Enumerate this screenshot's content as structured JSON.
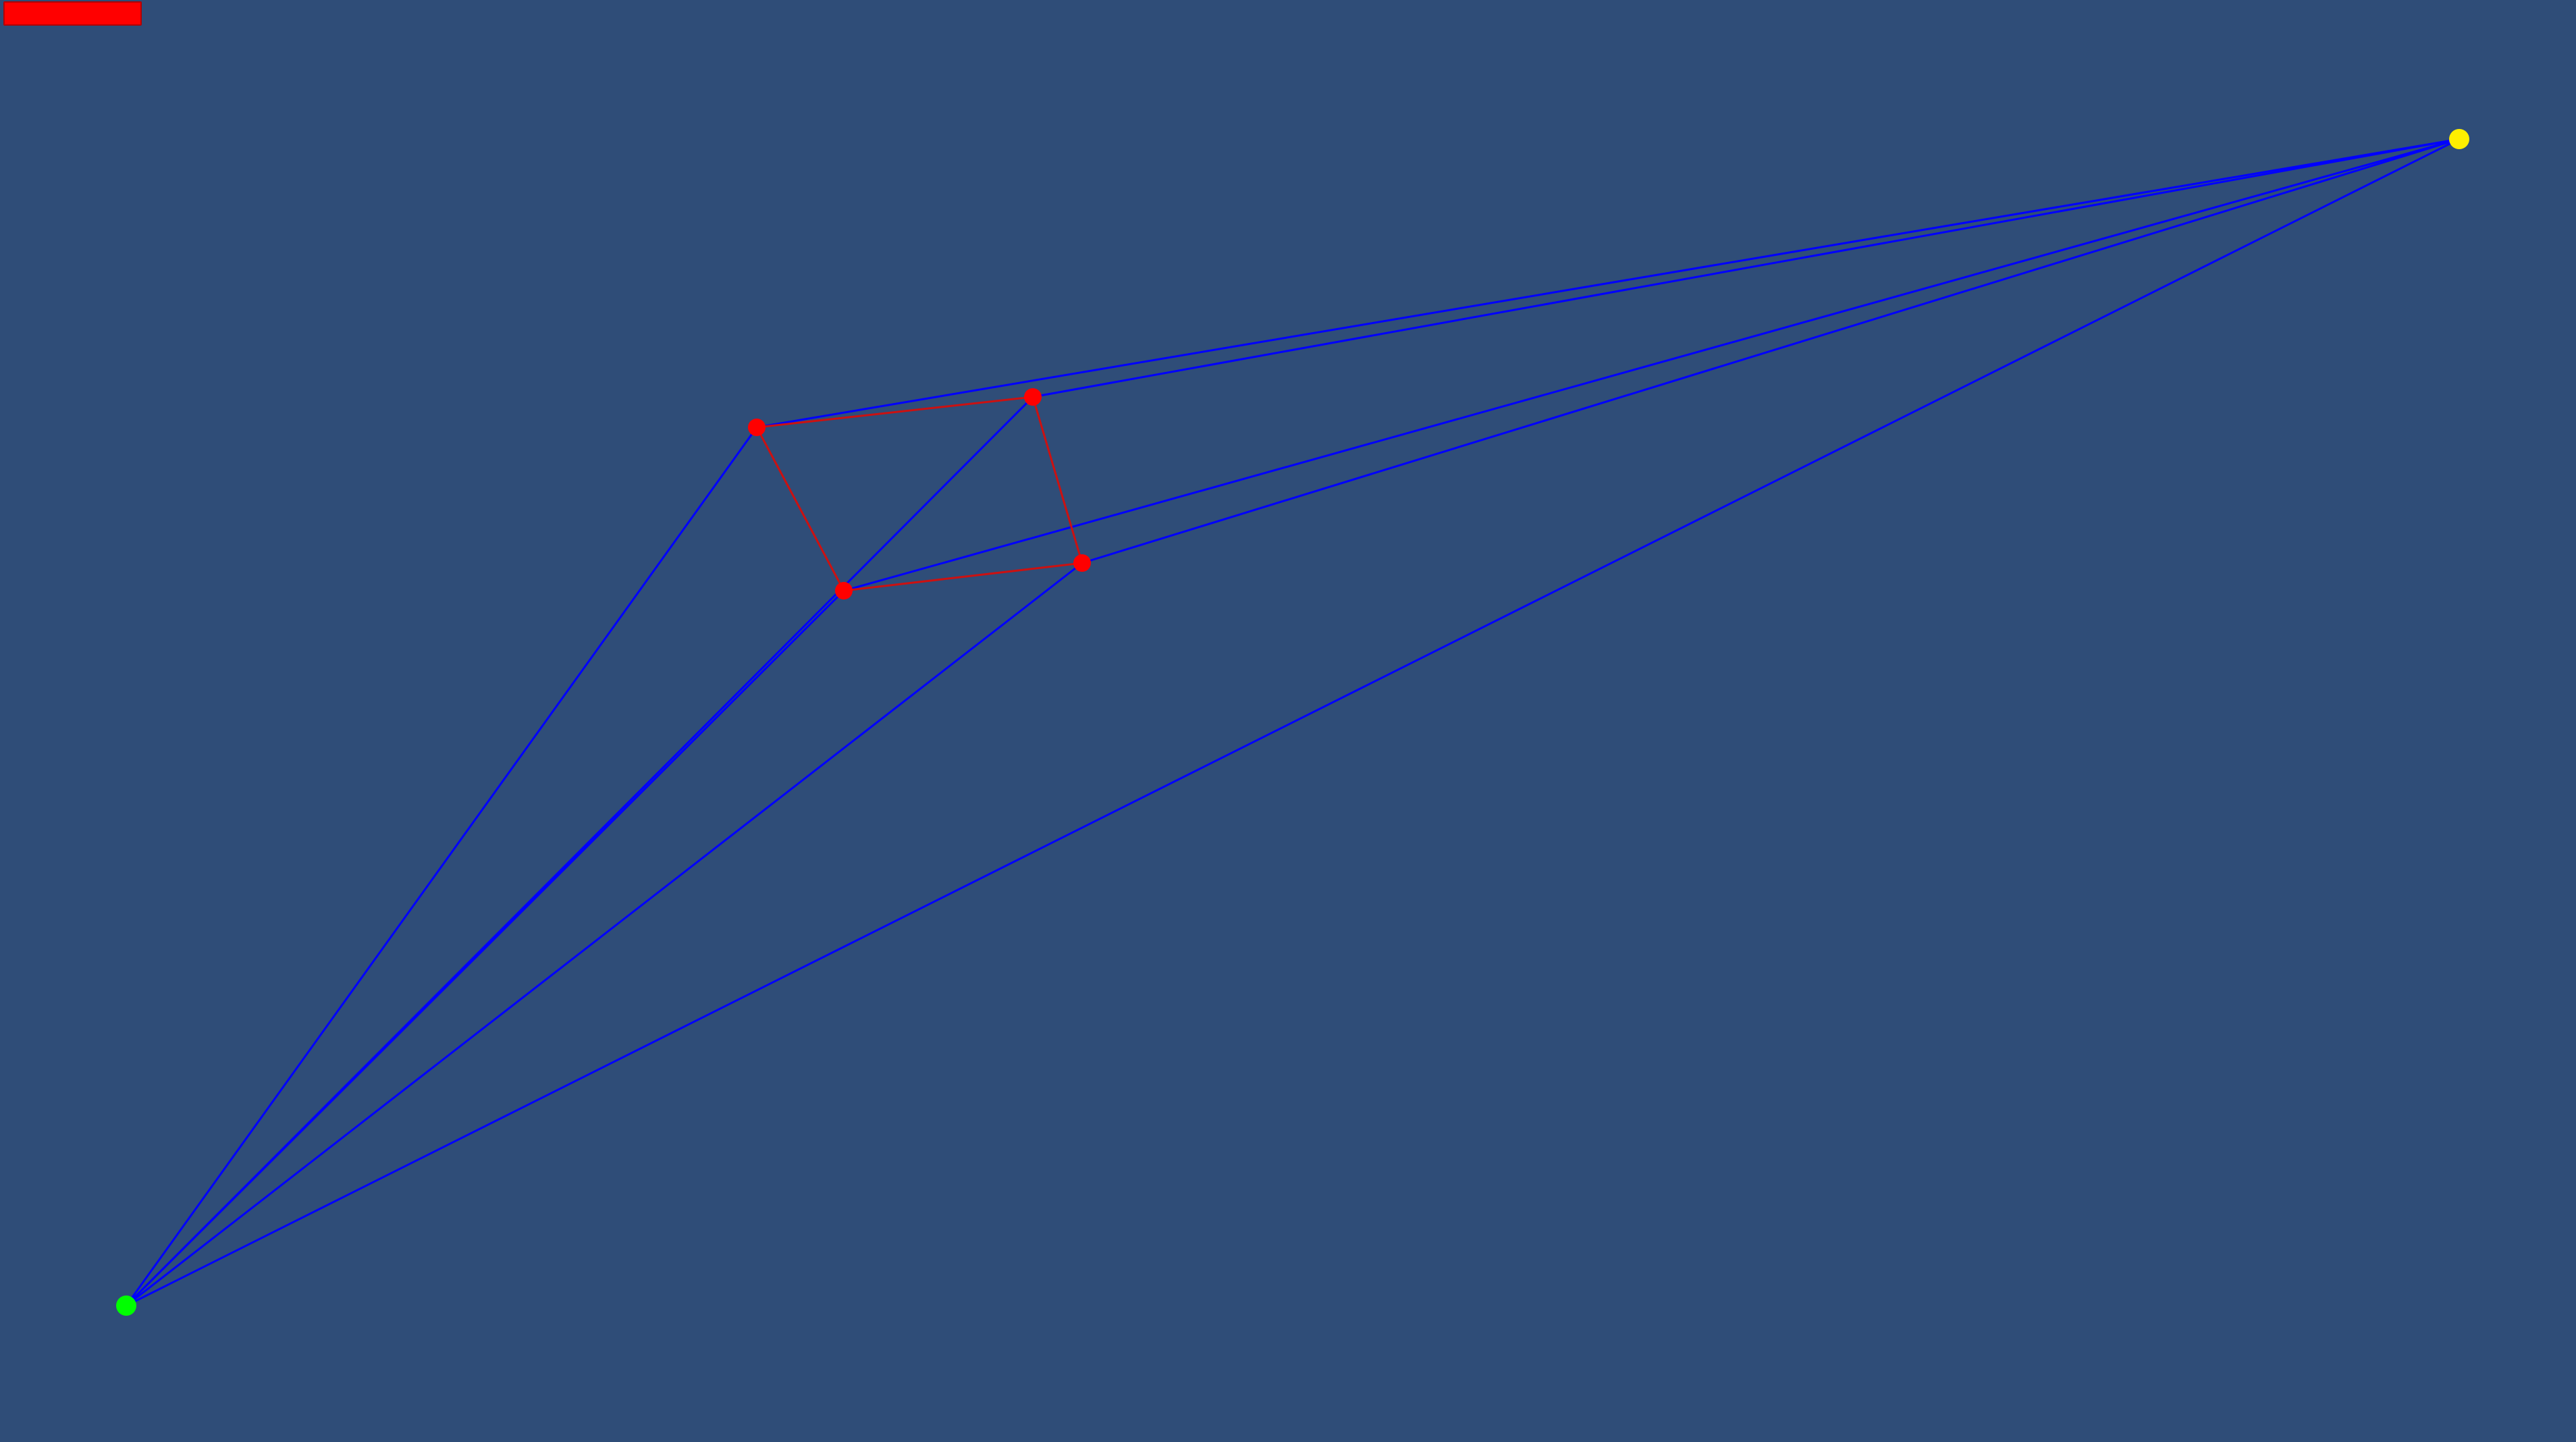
{
  "colors": {
    "background": "#2f4d78",
    "ray_line": "#0000ff",
    "polygon_edge": "#cc1111",
    "polygon_vertex": "#ff0000",
    "source_point": "#00ff00",
    "target_point": "#ffee00",
    "button_fill": "#ff0000"
  },
  "toolbar": {
    "button_label": ""
  },
  "scene": {
    "source_point": {
      "icon": "green-circle"
    },
    "target_point": {
      "icon": "yellow-circle"
    },
    "polygon_vertex_count": 4
  }
}
